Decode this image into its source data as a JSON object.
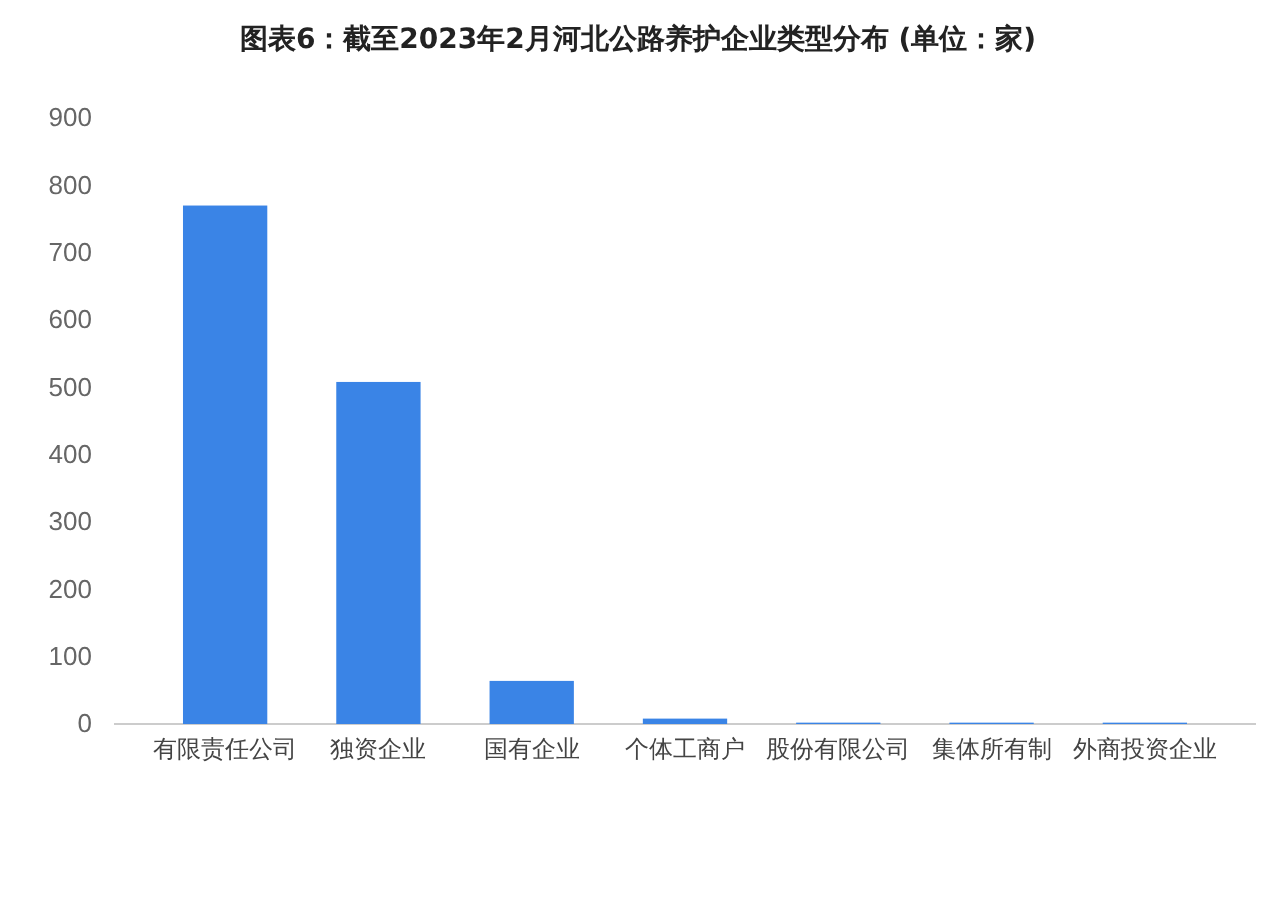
{
  "chart_data": {
    "type": "bar",
    "title": "图表6：截至2023年2月河北公路养护企业类型分布 (单位：家)",
    "categories": [
      "有限责任公司",
      "独资企业",
      "国有企业",
      "个体工商户",
      "股份有限公司",
      "集体所有制",
      "外商投资企业"
    ],
    "values": [
      770,
      508,
      64,
      8,
      2,
      2,
      2
    ],
    "color": "#3a84e6",
    "ylim": [
      0,
      900
    ],
    "yticks": [
      0,
      100,
      200,
      300,
      400,
      500,
      600,
      700,
      800,
      900
    ],
    "grid": false
  }
}
